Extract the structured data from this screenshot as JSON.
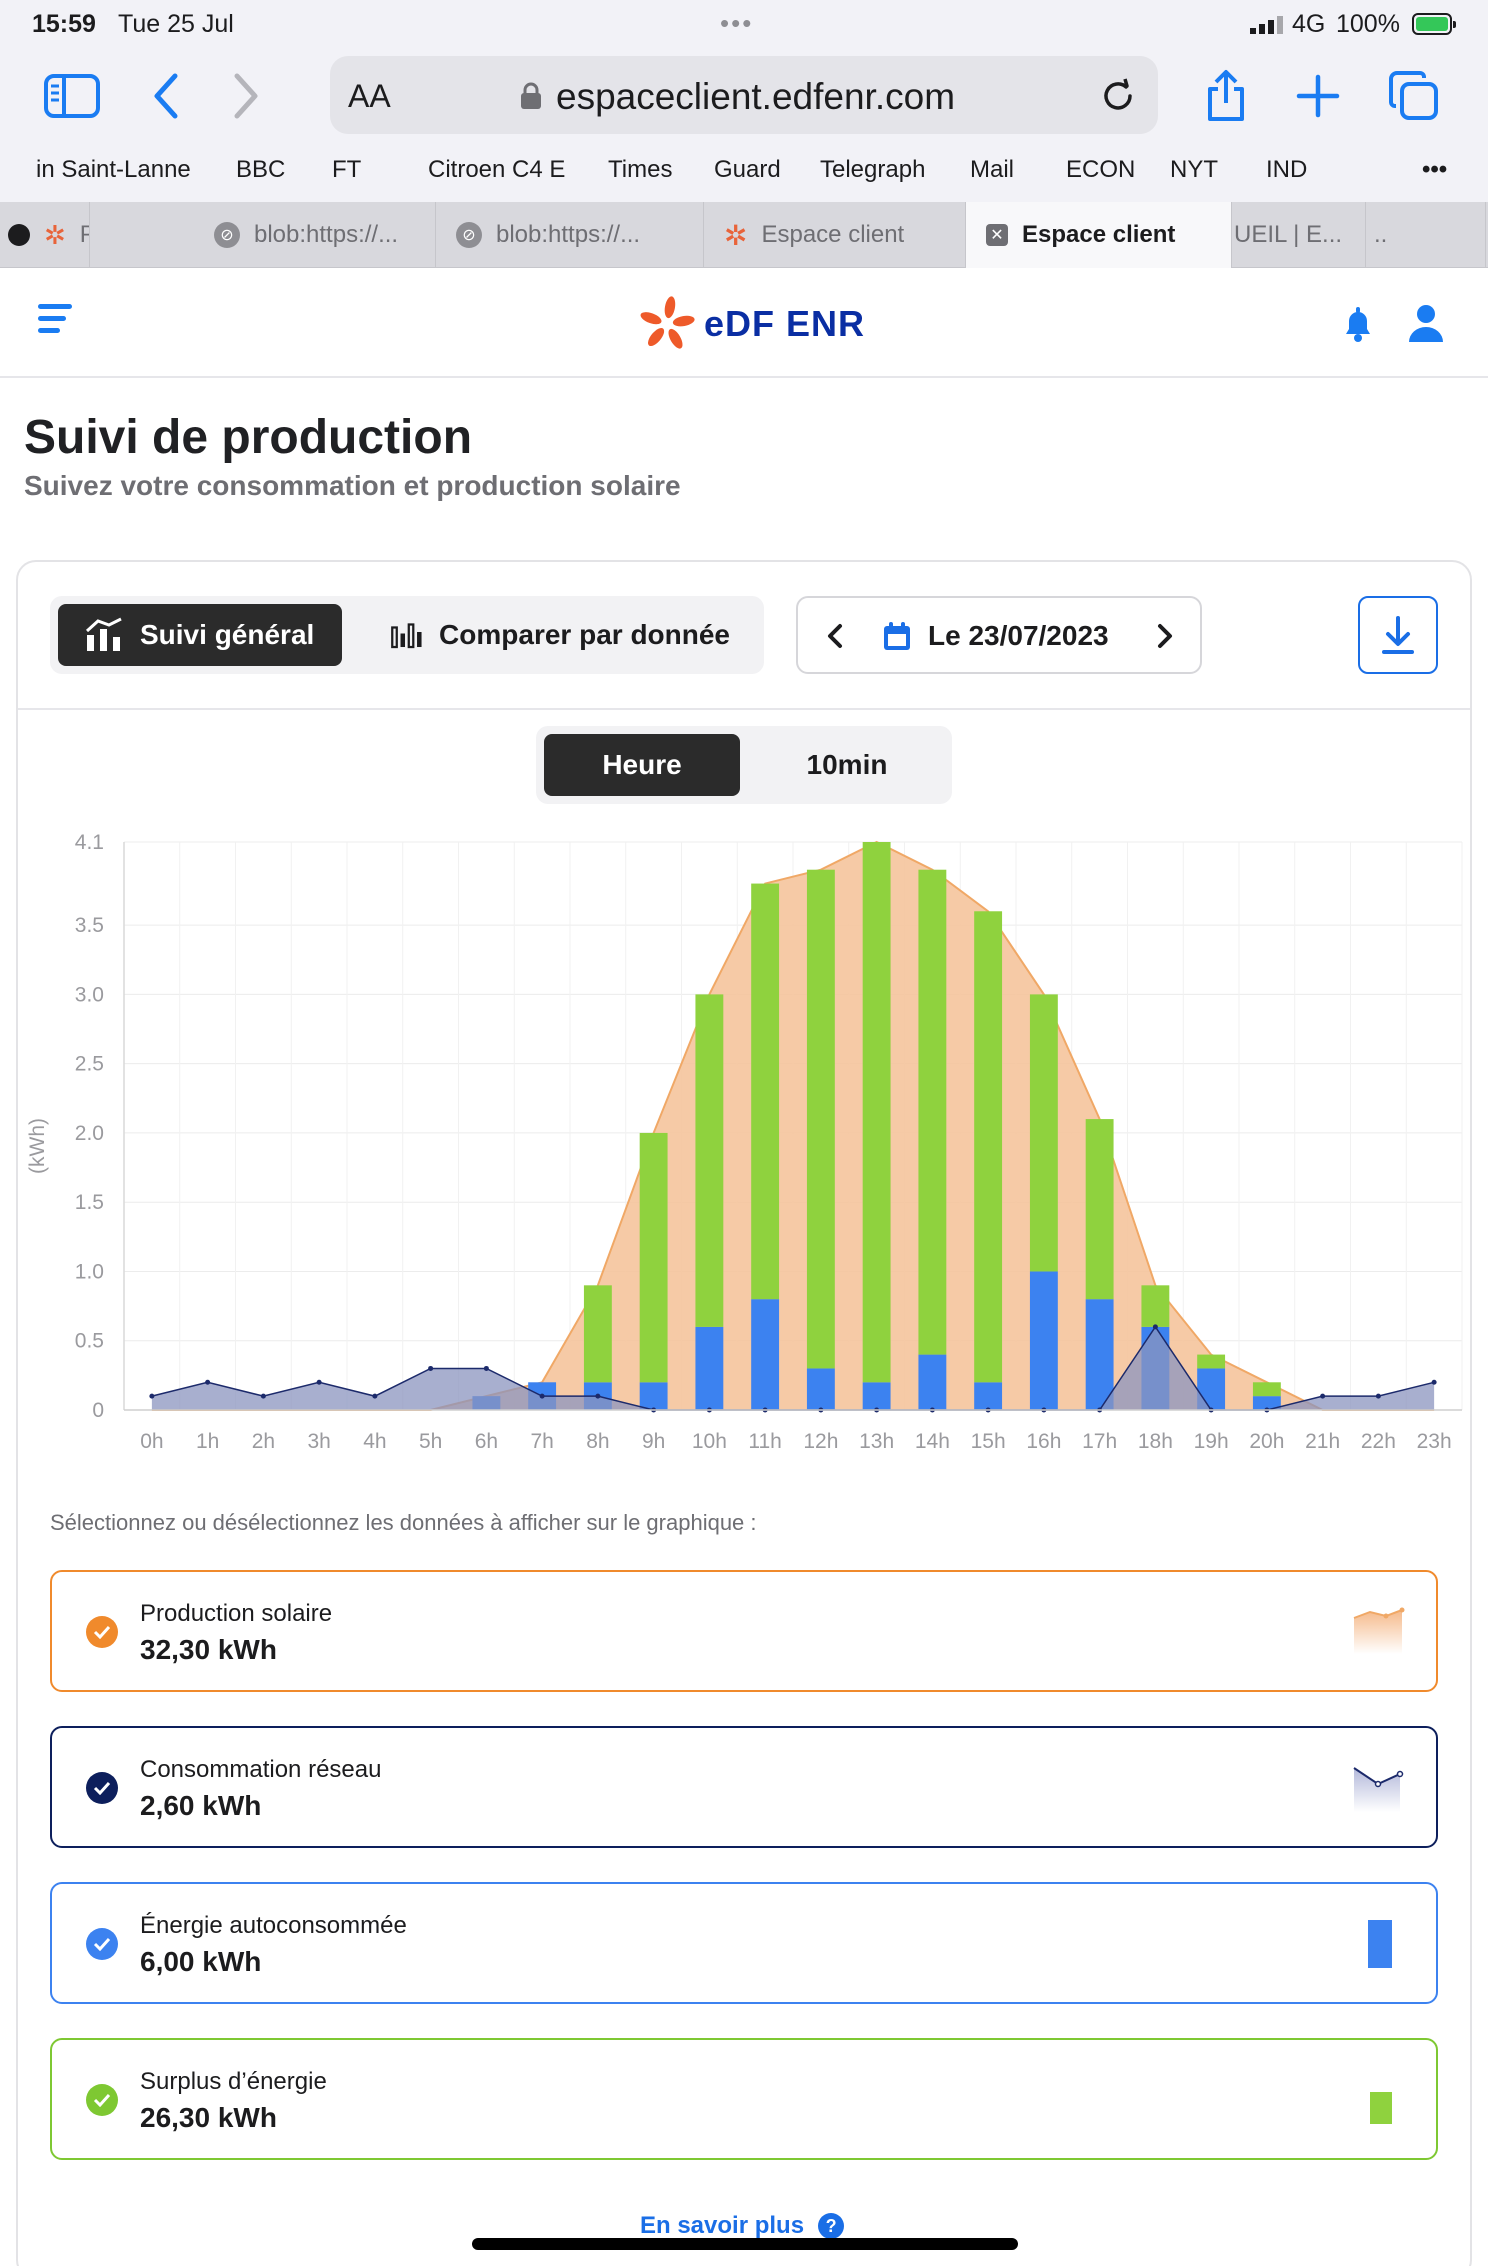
{
  "status_bar": {
    "time": "15:59",
    "date": "Tue 25 Jul",
    "network": "4G",
    "battery": "100%"
  },
  "browser": {
    "aa_label": "AA",
    "url": "espaceclient.edfenr.com",
    "bookmarks": [
      "in Saint-Lanne",
      "BBC",
      "FT",
      "Citroen C4 E",
      "Times",
      "Guard",
      "Telegraph",
      "Mail",
      "ECON",
      "NYT",
      "IND",
      "•••"
    ],
    "tabs": [
      {
        "label": "Pa",
        "icon": "edf-flower-icon"
      },
      {
        "label": "blob:https://...",
        "icon": "compass-icon"
      },
      {
        "label": "blob:https://...",
        "icon": "compass-icon"
      },
      {
        "label": "Espace client",
        "icon": "edf-flower-icon"
      },
      {
        "label": "Espace client",
        "icon": "close-icon",
        "active": true
      },
      {
        "label": "UEIL | E...",
        "icon": ""
      },
      {
        "label": "..",
        "icon": ""
      }
    ]
  },
  "app": {
    "logo_text": "eDF ENR",
    "page_title": "Suivi de production",
    "page_subtitle": "Suivez votre consommation et production solaire"
  },
  "controls": {
    "view_general": "Suivi général",
    "view_compare": "Comparer par donnée",
    "date_label": "Le 23/07/2023",
    "granularity_hour": "Heure",
    "granularity_10min": "10min"
  },
  "chart_data": {
    "type": "bar",
    "ylabel": "(kWh)",
    "ylim": [
      0,
      4.1
    ],
    "yticks": [
      "0",
      "0.5",
      "1.0",
      "1.5",
      "2.0",
      "2.5",
      "3.0",
      "3.5",
      "4.1"
    ],
    "categories": [
      "0h",
      "1h",
      "2h",
      "3h",
      "4h",
      "5h",
      "6h",
      "7h",
      "8h",
      "9h",
      "10h",
      "11h",
      "12h",
      "13h",
      "14h",
      "15h",
      "16h",
      "17h",
      "18h",
      "19h",
      "20h",
      "21h",
      "22h",
      "23h"
    ],
    "series": [
      {
        "name": "Production solaire",
        "kind": "area",
        "color": "#f5c49c",
        "line_color": "#f0a866",
        "values": [
          0,
          0,
          0,
          0,
          0,
          0,
          0.1,
          0.2,
          0.9,
          2.0,
          3.0,
          3.8,
          3.9,
          4.1,
          3.9,
          3.6,
          3.0,
          2.1,
          0.9,
          0.4,
          0.2,
          0,
          0,
          0
        ]
      },
      {
        "name": "Consommation réseau",
        "kind": "area",
        "color": "#8b94bf",
        "line_color": "#1c2a6b",
        "values": [
          0.1,
          0.2,
          0.1,
          0.2,
          0.1,
          0.3,
          0.3,
          0.1,
          0.1,
          0,
          0,
          0,
          0,
          0,
          0,
          0,
          0,
          0,
          0.6,
          0,
          0,
          0.1,
          0.1,
          0.2
        ]
      },
      {
        "name": "Énergie autoconsommée",
        "kind": "bar",
        "color": "#3c82f0",
        "values": [
          0,
          0,
          0,
          0,
          0,
          0,
          0.1,
          0.2,
          0.2,
          0.2,
          0.6,
          0.8,
          0.3,
          0.2,
          0.4,
          0.2,
          1.0,
          0.8,
          0.6,
          0.3,
          0.1,
          0,
          0,
          0
        ]
      },
      {
        "name": "Surplus d'énergie",
        "kind": "bar",
        "color": "#8fd23e",
        "values": [
          0,
          0,
          0,
          0,
          0,
          0,
          0,
          0,
          0.7,
          1.8,
          2.4,
          3.0,
          3.6,
          3.9,
          3.5,
          3.4,
          2.0,
          1.3,
          0.3,
          0.1,
          0.1,
          0,
          0,
          0
        ]
      }
    ],
    "grid": true
  },
  "legend": {
    "hint": "Sélectionnez ou désélectionnez les données à afficher sur le graphique :",
    "items": [
      {
        "name": "Production solaire",
        "value": "32,30 kWh",
        "color": "#f08a2c"
      },
      {
        "name": "Consommation réseau",
        "value": "2,60 kWh",
        "color": "#0d1f5c"
      },
      {
        "name": "Énergie autoconsommée",
        "value": "6,00 kWh",
        "color": "#3c82f0"
      },
      {
        "name": "Surplus d’énergie",
        "value": "26,30 kWh",
        "color": "#7ec832"
      }
    ]
  },
  "footer": {
    "more_label": "En savoir plus"
  }
}
